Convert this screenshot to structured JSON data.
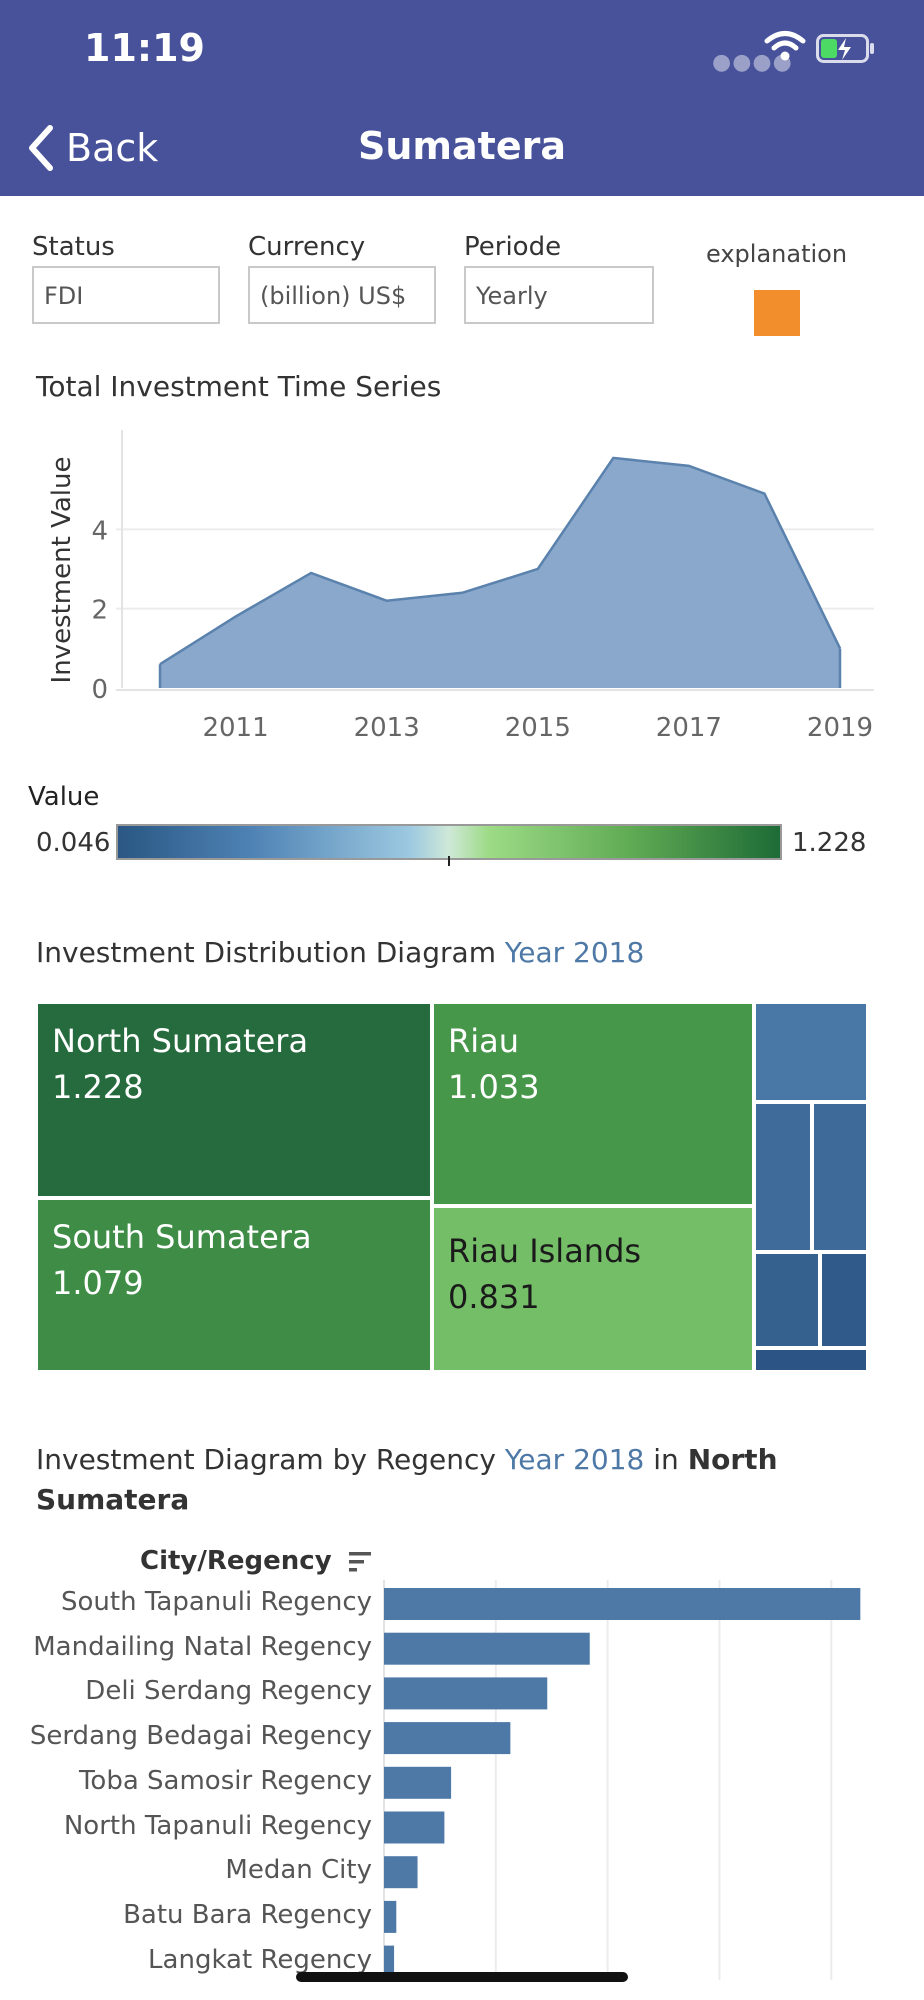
{
  "status_bar": {
    "time": "11:19"
  },
  "nav": {
    "back_label": "Back",
    "title": "Sumatera"
  },
  "filters": {
    "status": {
      "label": "Status",
      "value": "FDI"
    },
    "currency": {
      "label": "Currency",
      "value": "(billion) US$"
    },
    "periode": {
      "label": "Periode",
      "value": "Yearly"
    },
    "explanation_label": "explanation",
    "explanation_color": "#f28e2b"
  },
  "timeseries": {
    "title": "Total Investment Time Series"
  },
  "color_legend": {
    "title": "Value",
    "min": "0.046",
    "max": "1.228"
  },
  "treemap": {
    "title_prefix": "Investment Distribution Diagram",
    "title_year": "Year 2018"
  },
  "regency": {
    "title_prefix": "Investment Diagram by Regency",
    "title_year": "Year 2018",
    "title_in": "in",
    "title_region": "North Sumatera",
    "column_header": "City/Regency"
  },
  "chart_data": [
    {
      "type": "area",
      "title": "Total Investment Time Series",
      "ylabel": "Investment Value",
      "xlabel": "",
      "x": [
        2010,
        2011,
        2012,
        2013,
        2014,
        2015,
        2016,
        2017,
        2018,
        2019
      ],
      "values": [
        0.6,
        1.8,
        2.9,
        2.2,
        2.4,
        3.0,
        5.8,
        5.6,
        4.9,
        1.0
      ],
      "xticks": [
        "2011",
        "2013",
        "2015",
        "2017",
        "2019"
      ],
      "yticks": [
        "0",
        "2",
        "4"
      ],
      "ylim": [
        0,
        6
      ],
      "color": "#8aa8cb",
      "line_color": "#5a82ad",
      "grid": true
    },
    {
      "type": "treemap",
      "title": "Investment Distribution Diagram Year 2018",
      "items": [
        {
          "label": "North Sumatera",
          "value": 1.228,
          "color": "#266b3d",
          "text_color": "#ffffff"
        },
        {
          "label": "Riau",
          "value": 1.033,
          "color": "#47974a",
          "text_color": "#ffffff"
        },
        {
          "label": "South Sumatera",
          "value": 1.079,
          "color": "#3e8c45",
          "text_color": "#ffffff"
        },
        {
          "label": "Riau Islands",
          "value": 0.831,
          "color": "#75be68",
          "text_color": "#1a1a1a"
        }
      ],
      "unlabeled_colors": [
        "#4a78a6",
        "#3e6b9a",
        "#3d6a99",
        "#35618f",
        "#2f5a89",
        "#2c5585"
      ]
    },
    {
      "type": "bar",
      "orientation": "horizontal",
      "title": "Investment Diagram by Regency Year 2018 in North Sumatera",
      "categories": [
        "South Tapanuli Regency",
        "Mandailing Natal Regency",
        "Deli Serdang Regency",
        "Serdang Bedagai Regency",
        "Toba Samosir Regency",
        "North Tapanuli Regency",
        "Medan City",
        "Batu Bara Regency",
        "Langkat Regency"
      ],
      "values": [
        0.426,
        0.184,
        0.146,
        0.113,
        0.06,
        0.054,
        0.03,
        0.011,
        0.009
      ],
      "xlim": [
        0,
        0.44
      ],
      "color": "#4e79a7"
    }
  ]
}
